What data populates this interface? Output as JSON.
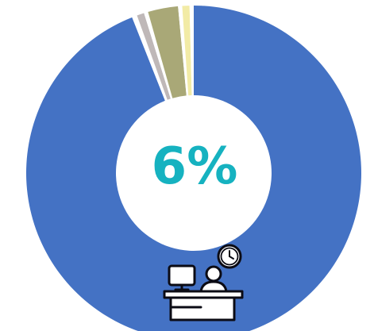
{
  "chart_data": {
    "type": "pie",
    "donut": true,
    "center_label": "6%",
    "slices": [
      {
        "value": 94.0,
        "color": "#4472c4"
      },
      {
        "value": 0.5,
        "color": "#ffffff"
      },
      {
        "value": 0.7,
        "color": "#bfb8b8"
      },
      {
        "value": 0.4,
        "color": "#ffffff"
      },
      {
        "value": 2.9,
        "color": "#a9a877"
      },
      {
        "value": 0.4,
        "color": "#ffffff"
      },
      {
        "value": 0.7,
        "color": "#f2eba6"
      },
      {
        "value": 0.4,
        "color": "#ffffff"
      }
    ]
  },
  "icon": "office-worker-desk-clock-icon",
  "colors": {
    "accent_text": "#16b2c0",
    "icon_stroke": "#0b0b14"
  }
}
